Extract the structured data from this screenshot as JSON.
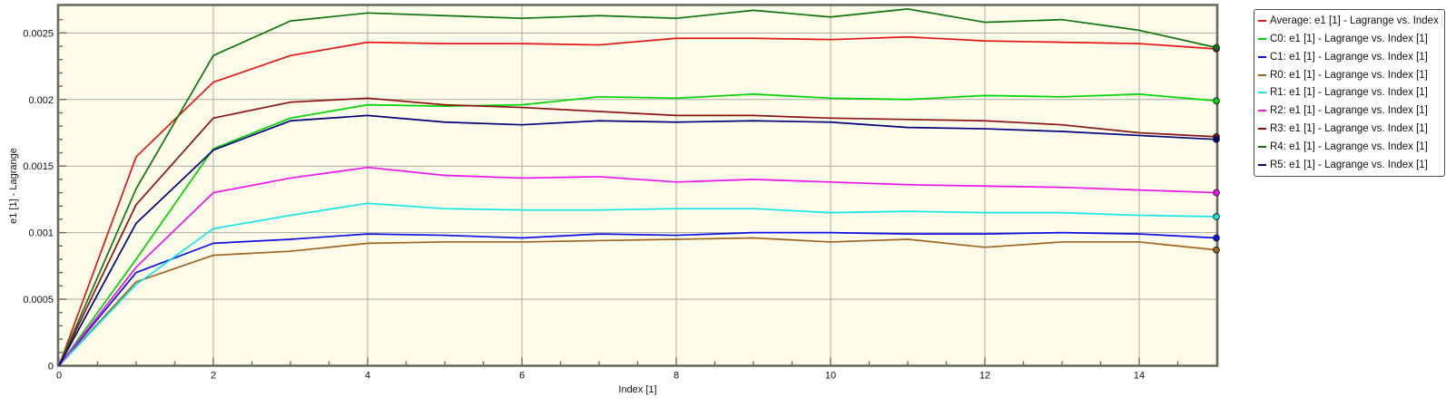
{
  "figure": {
    "background": "#ffffff",
    "plot_background": "#fcfce9",
    "grid_color": "#aaaaa2",
    "frame_color": "#6b6b62",
    "text_color": "#111111"
  },
  "chart_data": {
    "type": "line",
    "title": "",
    "xlabel": "Index [1]",
    "ylabel": "e1 [1] - Lagrange",
    "xlim": [
      0,
      15
    ],
    "ylim": [
      0,
      0.00271
    ],
    "grid": true,
    "legend_position": "right-outside",
    "end_markers": true,
    "x_major_ticks": [
      0,
      2,
      4,
      6,
      8,
      10,
      12,
      14
    ],
    "x_tick_labels": [
      "0",
      "2",
      "4",
      "6",
      "8",
      "10",
      "12",
      "14"
    ],
    "x_minor_step": 0.5,
    "y_major_ticks": [
      0,
      0.0005,
      0.001,
      0.0015,
      0.002,
      0.0025
    ],
    "y_tick_labels": [
      "0",
      "0.0005",
      "0.001",
      "0.0015",
      "0.002",
      "0.0025"
    ],
    "y_minor_step": 0.0001,
    "x": [
      0,
      1,
      2,
      3,
      4,
      5,
      6,
      7,
      8,
      9,
      10,
      11,
      12,
      13,
      14,
      15
    ],
    "series": [
      {
        "name": "Average",
        "label": "Average: e1 [1] - Lagrange vs. Index [1]",
        "color": "#e51616",
        "values": [
          0,
          0.00157,
          0.00213,
          0.00233,
          0.00243,
          0.00242,
          0.00242,
          0.00241,
          0.00246,
          0.00246,
          0.00245,
          0.00247,
          0.00244,
          0.00243,
          0.00242,
          0.00238
        ]
      },
      {
        "name": "C0",
        "label": "C0: e1 [1] - Lagrange vs. Index [1]",
        "color": "#00d400",
        "values": [
          0,
          0.0008,
          0.00163,
          0.00186,
          0.00196,
          0.00195,
          0.00196,
          0.00202,
          0.00201,
          0.00204,
          0.00201,
          0.002,
          0.00203,
          0.00202,
          0.00204,
          0.00199
        ]
      },
      {
        "name": "C1",
        "label": "C1: e1 [1] - Lagrange vs. Index [1]",
        "color": "#0f0fe8",
        "values": [
          0,
          0.0007,
          0.00092,
          0.00095,
          0.00099,
          0.00098,
          0.00096,
          0.00099,
          0.00098,
          0.001,
          0.001,
          0.00099,
          0.00099,
          0.001,
          0.00099,
          0.00096
        ]
      },
      {
        "name": "R0",
        "label": "R0: e1 [1] - Lagrange vs. Index [1]",
        "color": "#a2641f",
        "values": [
          0,
          0.00063,
          0.00083,
          0.00086,
          0.00092,
          0.00093,
          0.00093,
          0.00094,
          0.00095,
          0.00096,
          0.00093,
          0.00095,
          0.00089,
          0.00093,
          0.00093,
          0.00087
        ]
      },
      {
        "name": "R1",
        "label": "R1: e1 [1] - Lagrange vs. Index [1]",
        "color": "#12e6e6",
        "values": [
          0,
          0.00061,
          0.00103,
          0.00113,
          0.00122,
          0.00118,
          0.00117,
          0.00117,
          0.00118,
          0.00118,
          0.00115,
          0.00116,
          0.00115,
          0.00115,
          0.00113,
          0.00112
        ]
      },
      {
        "name": "R2",
        "label": "R2: e1 [1] - Lagrange vs. Index [1]",
        "color": "#ee14ee",
        "values": [
          0,
          0.00074,
          0.0013,
          0.00141,
          0.00149,
          0.00143,
          0.00141,
          0.00142,
          0.00138,
          0.0014,
          0.00138,
          0.00136,
          0.00135,
          0.00134,
          0.00132,
          0.0013
        ]
      },
      {
        "name": "R3",
        "label": "R3: e1 [1] - Lagrange vs. Index [1]",
        "color": "#8d1313",
        "values": [
          0,
          0.00121,
          0.00186,
          0.00198,
          0.00201,
          0.00196,
          0.00194,
          0.00191,
          0.00188,
          0.00188,
          0.00186,
          0.00185,
          0.00184,
          0.00181,
          0.00175,
          0.00172
        ]
      },
      {
        "name": "R4",
        "label": "R4: e1 [1] - Lagrange vs. Index [1]",
        "color": "#107510",
        "values": [
          0,
          0.00133,
          0.00233,
          0.00259,
          0.00265,
          0.00263,
          0.00261,
          0.00263,
          0.00261,
          0.00267,
          0.00262,
          0.00268,
          0.00258,
          0.0026,
          0.00252,
          0.00239
        ]
      },
      {
        "name": "R5",
        "label": "R5: e1 [1] - Lagrange vs. Index [1]",
        "color": "#00007d",
        "values": [
          0,
          0.00107,
          0.00162,
          0.00184,
          0.00188,
          0.00183,
          0.00181,
          0.00184,
          0.00183,
          0.00184,
          0.00183,
          0.00179,
          0.00178,
          0.00176,
          0.00173,
          0.0017
        ]
      }
    ]
  }
}
